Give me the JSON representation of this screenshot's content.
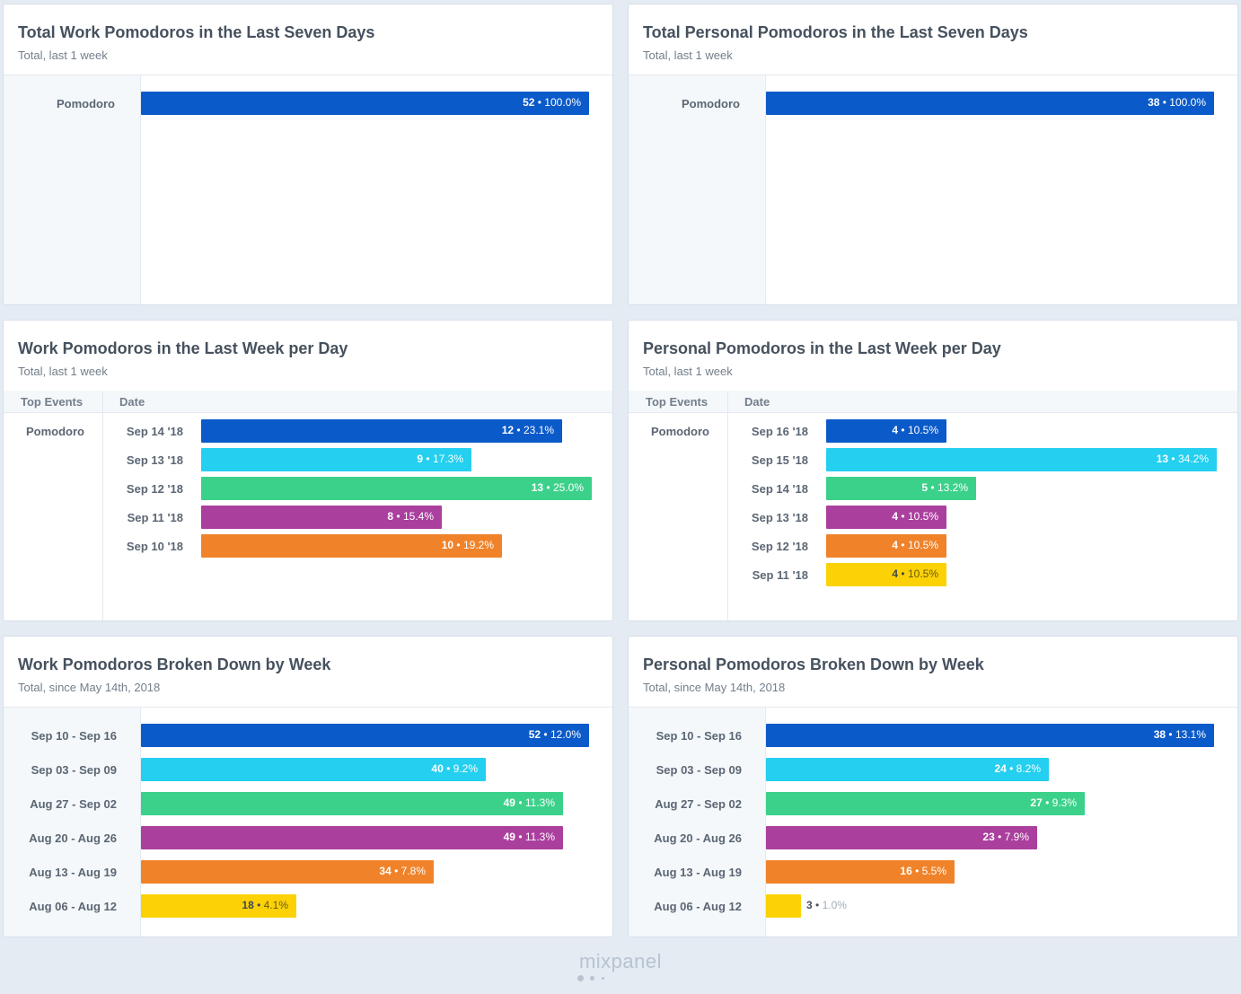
{
  "colors": {
    "blue": "#0b5ac9",
    "cyan": "#24cfef",
    "green": "#3cd18a",
    "purple": "#ab3f9e",
    "orange": "#f0832a",
    "yellow": "#fcd207"
  },
  "cards": [
    {
      "title": "Total Work Pomodoros in the Last Seven Days",
      "subtitle": "Total, last 1 week",
      "bars": [
        {
          "label": "Pomodoro",
          "count": "52",
          "pct": "100.0%",
          "value": 52,
          "color": "blue"
        }
      ]
    },
    {
      "title": "Total Personal Pomodoros in the Last Seven Days",
      "subtitle": "Total, last 1 week",
      "bars": [
        {
          "label": "Pomodoro",
          "count": "38",
          "pct": "100.0%",
          "value": 38,
          "color": "blue"
        }
      ]
    },
    {
      "title": "Work Pomodoros in the Last Week per Day",
      "subtitle": "Total, last 1 week",
      "col_top_events": "Top Events",
      "col_date": "Date",
      "event": "Pomodoro",
      "bars": [
        {
          "label": "Sep 14 '18",
          "count": "12",
          "pct": "23.1%",
          "value": 12,
          "color": "blue"
        },
        {
          "label": "Sep 13 '18",
          "count": "9",
          "pct": "17.3%",
          "value": 9,
          "color": "cyan"
        },
        {
          "label": "Sep 12 '18",
          "count": "13",
          "pct": "25.0%",
          "value": 13,
          "color": "green"
        },
        {
          "label": "Sep 11 '18",
          "count": "8",
          "pct": "15.4%",
          "value": 8,
          "color": "purple"
        },
        {
          "label": "Sep 10 '18",
          "count": "10",
          "pct": "19.2%",
          "value": 10,
          "color": "orange"
        }
      ]
    },
    {
      "title": "Personal Pomodoros in the Last Week per Day",
      "subtitle": "Total, last 1 week",
      "col_top_events": "Top Events",
      "col_date": "Date",
      "event": "Pomodoro",
      "bars": [
        {
          "label": "Sep 16 '18",
          "count": "4",
          "pct": "10.5%",
          "value": 4,
          "color": "blue"
        },
        {
          "label": "Sep 15 '18",
          "count": "13",
          "pct": "34.2%",
          "value": 13,
          "color": "cyan"
        },
        {
          "label": "Sep 14 '18",
          "count": "5",
          "pct": "13.2%",
          "value": 5,
          "color": "green"
        },
        {
          "label": "Sep 13 '18",
          "count": "4",
          "pct": "10.5%",
          "value": 4,
          "color": "purple"
        },
        {
          "label": "Sep 12 '18",
          "count": "4",
          "pct": "10.5%",
          "value": 4,
          "color": "orange"
        },
        {
          "label": "Sep 11 '18",
          "count": "4",
          "pct": "10.5%",
          "value": 4,
          "color": "yellow"
        }
      ]
    },
    {
      "title": "Work Pomodoros Broken Down by Week",
      "subtitle": "Total, since May 14th, 2018",
      "bars": [
        {
          "label": "Sep 10 - Sep 16",
          "count": "52",
          "pct": "12.0%",
          "value": 52,
          "color": "blue"
        },
        {
          "label": "Sep 03 - Sep 09",
          "count": "40",
          "pct": "9.2%",
          "value": 40,
          "color": "cyan"
        },
        {
          "label": "Aug 27 - Sep 02",
          "count": "49",
          "pct": "11.3%",
          "value": 49,
          "color": "green"
        },
        {
          "label": "Aug 20 - Aug 26",
          "count": "49",
          "pct": "11.3%",
          "value": 49,
          "color": "purple"
        },
        {
          "label": "Aug 13 - Aug 19",
          "count": "34",
          "pct": "7.8%",
          "value": 34,
          "color": "orange"
        },
        {
          "label": "Aug 06 - Aug 12",
          "count": "18",
          "pct": "4.1%",
          "value": 18,
          "color": "yellow"
        }
      ]
    },
    {
      "title": "Personal Pomodoros Broken Down by Week",
      "subtitle": "Total, since May 14th, 2018",
      "bars": [
        {
          "label": "Sep 10 - Sep 16",
          "count": "38",
          "pct": "13.1%",
          "value": 38,
          "color": "blue"
        },
        {
          "label": "Sep 03 - Sep 09",
          "count": "24",
          "pct": "8.2%",
          "value": 24,
          "color": "cyan"
        },
        {
          "label": "Aug 27 - Sep 02",
          "count": "27",
          "pct": "9.3%",
          "value": 27,
          "color": "green"
        },
        {
          "label": "Aug 20 - Aug 26",
          "count": "23",
          "pct": "7.9%",
          "value": 23,
          "color": "purple"
        },
        {
          "label": "Aug 13 - Aug 19",
          "count": "16",
          "pct": "5.5%",
          "value": 16,
          "color": "orange"
        },
        {
          "label": "Aug 06 - Aug 12",
          "count": "3",
          "pct": "1.0%",
          "value": 3,
          "color": "yellow"
        }
      ]
    }
  ],
  "footer": {
    "logo_text": "mixpanel"
  }
}
